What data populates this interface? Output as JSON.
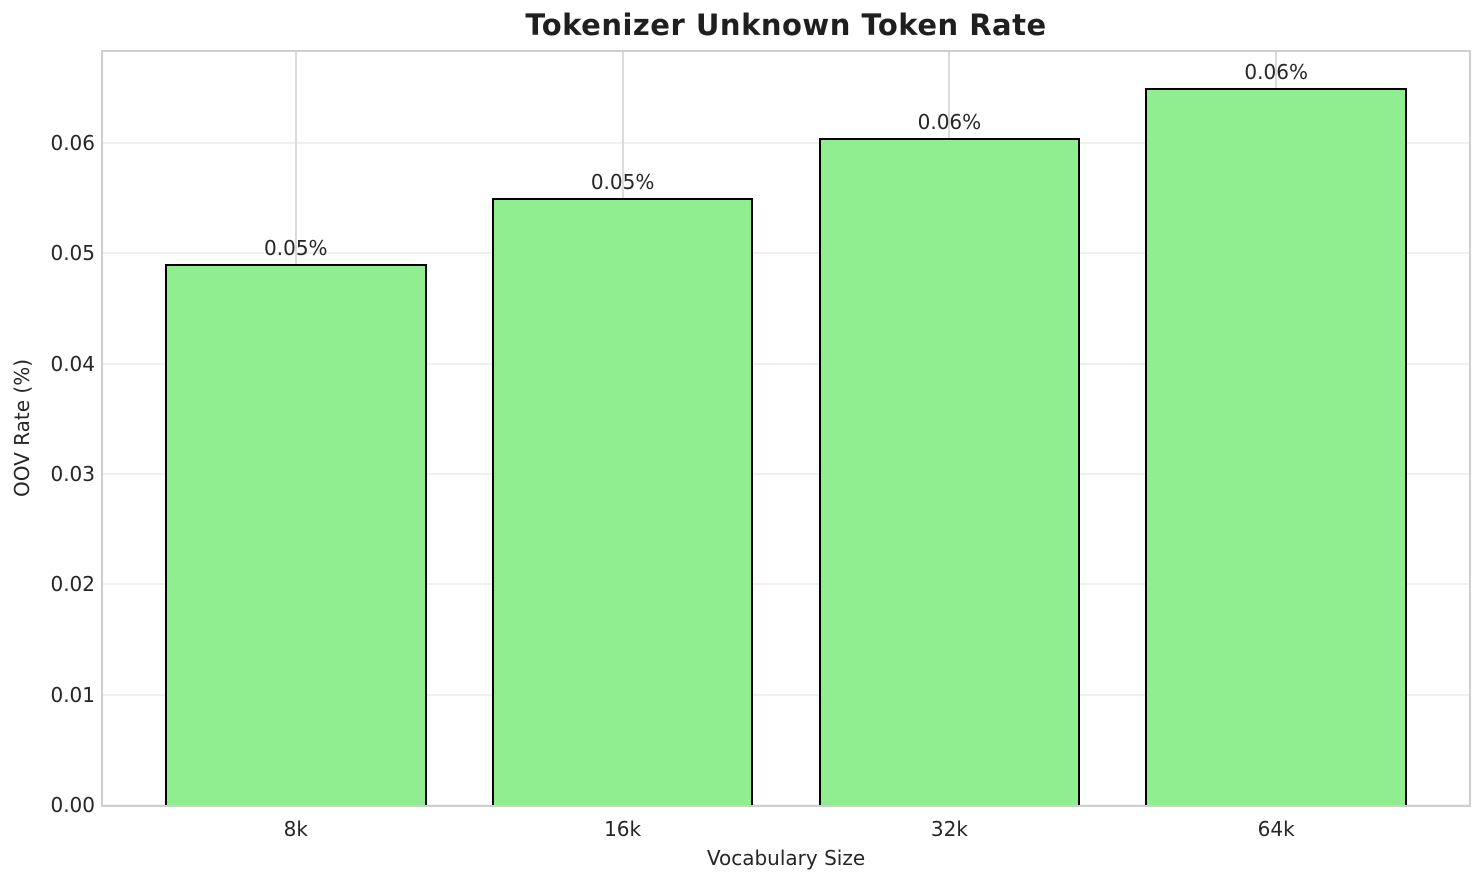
{
  "chart_data": {
    "type": "bar",
    "title": "Tokenizer Unknown Token Rate",
    "xlabel": "Vocabulary Size",
    "ylabel": "OOV Rate (%)",
    "categories": [
      "8k",
      "16k",
      "32k",
      "64k"
    ],
    "values": [
      0.049,
      0.055,
      0.0605,
      0.065
    ],
    "bar_labels": [
      "0.05%",
      "0.05%",
      "0.06%",
      "0.06%"
    ],
    "ytick_labels": [
      "0.00",
      "0.01",
      "0.02",
      "0.03",
      "0.04",
      "0.05",
      "0.06"
    ],
    "ytick_values": [
      0,
      0.01,
      0.02,
      0.03,
      0.04,
      0.05,
      0.06
    ],
    "ylim": [
      0,
      0.06825
    ],
    "grid": true,
    "legend_position": "none",
    "bar_width_fraction": 0.8,
    "colors": {
      "bar_fill": "#90EE90",
      "bar_edge": "#000000",
      "grid_horizontal": "#F0F0F0",
      "grid_vertical": "#DBDBDB",
      "spine": "#CFCFCF",
      "text": "#262626",
      "title": "#1F1F1F",
      "background": "#FFFFFF"
    }
  }
}
